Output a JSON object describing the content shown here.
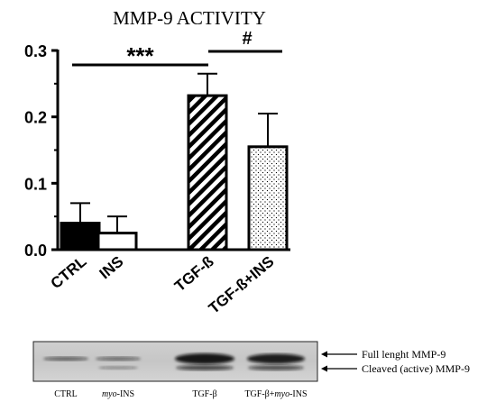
{
  "chart_data": {
    "type": "bar",
    "title": "MMP-9 ACTIVITY",
    "categories": [
      "CTRL",
      "INS",
      "TGF-ß",
      "TGF-ß+INS"
    ],
    "values": [
      0.04,
      0.025,
      0.232,
      0.155
    ],
    "error_upper": [
      0.07,
      0.05,
      0.265,
      0.205
    ],
    "ylim": [
      0,
      0.3
    ],
    "yticks": [
      "0.0",
      "0.1",
      "0.2",
      "0.3"
    ],
    "grid": false,
    "significance": [
      {
        "label": "***",
        "from": "CTRL",
        "to": "TGF-ß"
      },
      {
        "label": "#",
        "from": "TGF-ß",
        "to": "TGF-ß+INS"
      }
    ],
    "bar_fills": [
      "solid",
      "open",
      "hatched",
      "dotted"
    ],
    "colors": {
      "ink": "#000000",
      "background": "#ffffff"
    }
  },
  "blot": {
    "lanes": [
      {
        "prefix": "",
        "italic": "",
        "suffix": "CTRL"
      },
      {
        "prefix": "",
        "italic": "myo",
        "suffix": "-INS"
      },
      {
        "prefix": "",
        "italic": "",
        "suffix": "TGF-β"
      },
      {
        "prefix": "TGF-β+",
        "italic": "myo",
        "suffix": "-INS"
      }
    ],
    "bands": [
      {
        "label": "Full lenght MMP-9"
      },
      {
        "label": "Cleaved (active) MMP-9"
      }
    ]
  }
}
